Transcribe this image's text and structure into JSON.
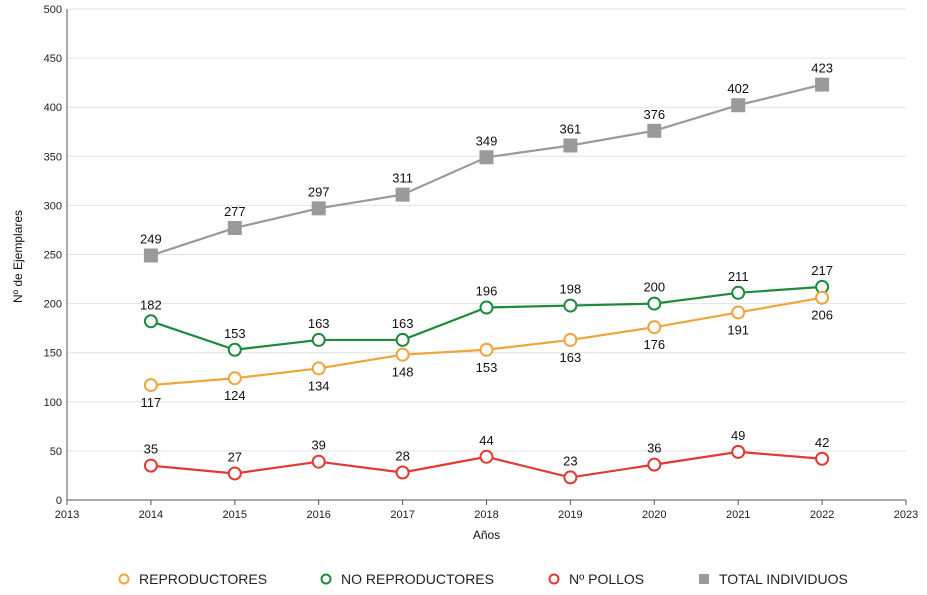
{
  "chart_data": {
    "type": "line",
    "title": "",
    "xlabel": "Años",
    "ylabel": "Nº de Ejemplares",
    "xlim": [
      2013,
      2023
    ],
    "ylim": [
      0,
      500
    ],
    "x_ticks": [
      "2013",
      "2014",
      "2015",
      "2016",
      "2017",
      "2018",
      "2019",
      "2020",
      "2021",
      "2022",
      "2023"
    ],
    "y_ticks": [
      "0",
      "50",
      "100",
      "150",
      "200",
      "250",
      "300",
      "350",
      "400",
      "450",
      "500"
    ],
    "x": [
      2014,
      2015,
      2016,
      2017,
      2018,
      2019,
      2020,
      2021,
      2022
    ],
    "grid": "horizontal",
    "legend_position": "bottom",
    "series": [
      {
        "name": "TOTAL INDIVIDUOS",
        "color": "#9a9a9a",
        "marker": "square",
        "values": [
          249,
          277,
          297,
          311,
          349,
          361,
          376,
          402,
          423
        ],
        "labels": [
          "249",
          "277",
          "297",
          "311",
          "349",
          "361",
          "376",
          "402",
          "423"
        ]
      },
      {
        "name": "NO REPRODUCTORES",
        "color": "#1e8a3c",
        "marker": "circle",
        "values": [
          182,
          153,
          163,
          163,
          196,
          198,
          200,
          211,
          217
        ],
        "labels": [
          "182",
          "153",
          "163",
          "163",
          "196",
          "198",
          "200",
          "211",
          "217"
        ]
      },
      {
        "name": "REPRODUCTORES",
        "color": "#f0a53c",
        "marker": "circle",
        "values": [
          117,
          124,
          134,
          148,
          153,
          163,
          176,
          191,
          206
        ],
        "labels": [
          "117",
          "124",
          "134",
          "148",
          "153",
          "163",
          "176",
          "191",
          "206"
        ]
      },
      {
        "name": "Nº POLLOS",
        "color": "#e03a33",
        "marker": "circle",
        "values": [
          35,
          27,
          39,
          28,
          44,
          23,
          36,
          49,
          42
        ],
        "labels": [
          "35",
          "27",
          "39",
          "28",
          "44",
          "23",
          "36",
          "49",
          "42"
        ]
      }
    ],
    "legend_order": [
      "REPRODUCTORES",
      "NO REPRODUCTORES",
      "Nº POLLOS",
      "TOTAL INDIVIDUOS"
    ]
  }
}
